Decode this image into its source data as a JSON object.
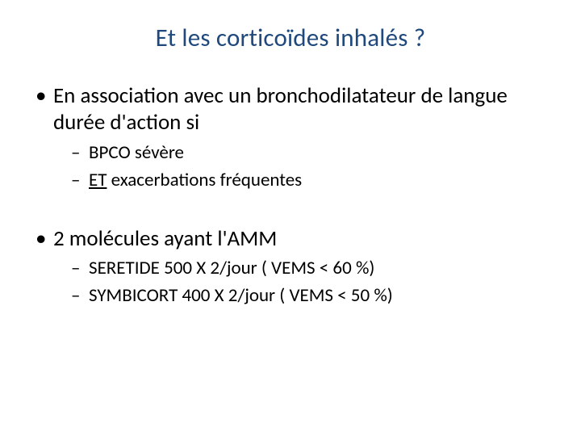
{
  "title": "Et les corticoïdes inhalés ?",
  "bullets": [
    {
      "text": "En association avec un bronchodilatateur de langue durée d'action si",
      "children": [
        {
          "text": "BPCO sévère"
        },
        {
          "prefix_underlined": " ET",
          "rest": " exacerbations fréquentes"
        }
      ]
    },
    {
      "text": " 2 molécules ayant l'AMM",
      "children": [
        {
          "text": "SERETIDE 500 X 2/jour ( VEMS < 60 %)"
        },
        {
          "text": " SYMBICORT 400 X 2/jour ( VEMS < 50 %)"
        }
      ]
    }
  ],
  "colors": {
    "title": "#1f497d",
    "body": "#000000",
    "background": "#ffffff"
  },
  "fonts": {
    "title_size_pt": 31,
    "level1_size_pt": 27,
    "level2_size_pt": 23,
    "family": "Calibri"
  }
}
